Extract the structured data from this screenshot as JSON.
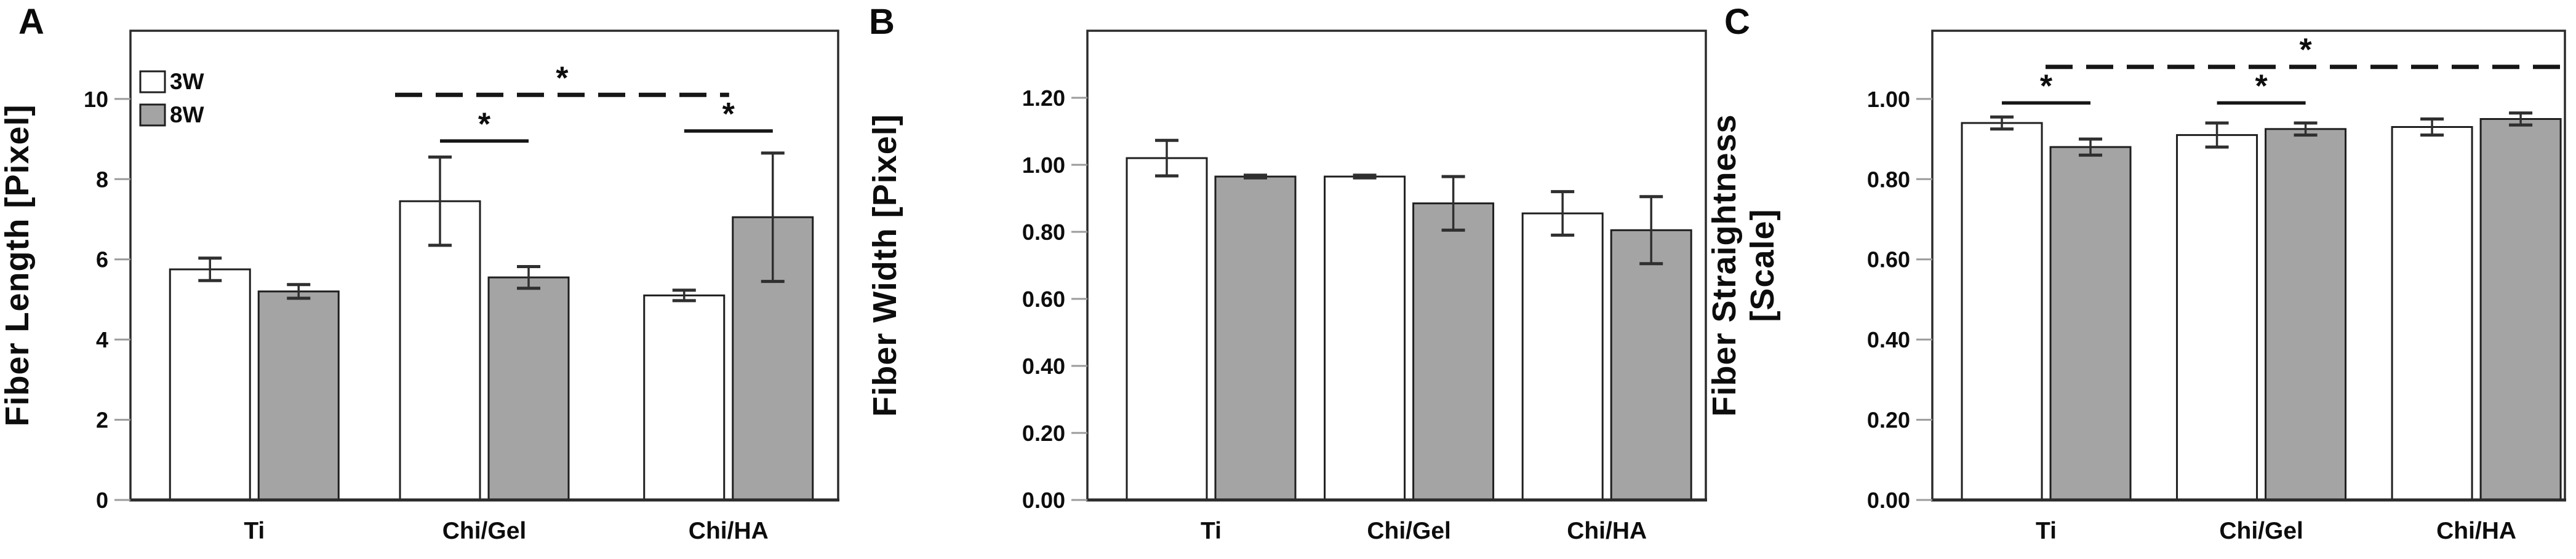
{
  "figure": {
    "background": "#ffffff",
    "panel_letters": [
      "A",
      "B",
      "C"
    ],
    "bar_outline_color": "#1f1f1f",
    "error_bar_color": "#2f2f2f",
    "axis_box_color": "#2b2b2b",
    "tick_mark_color": "#9b9b9b",
    "significance_symbol": "*"
  },
  "chart_data": [
    {
      "type": "bar",
      "panel_letter": "A",
      "ylabel_lines": [
        "Fiber Length [Pixel]"
      ],
      "ylabel_x": 46,
      "ylim": [
        0,
        11.7
      ],
      "yticks": [
        {
          "value": 0,
          "label": "0"
        },
        {
          "value": 2,
          "label": "2"
        },
        {
          "value": 4,
          "label": "4"
        },
        {
          "value": 6,
          "label": "6"
        },
        {
          "value": 8,
          "label": "8"
        },
        {
          "value": 10,
          "label": "10"
        }
      ],
      "categories": [
        "Ti",
        "Chi/Gel",
        "Chi/HA"
      ],
      "series": [
        {
          "name": "3W",
          "fill": "#ffffff",
          "values": [
            5.75,
            7.45,
            5.1
          ],
          "errors": [
            0.28,
            1.1,
            0.13
          ]
        },
        {
          "name": "8W",
          "fill": "#a4a4a4",
          "values": [
            5.2,
            5.55,
            7.05
          ],
          "errors": [
            0.17,
            0.27,
            1.6
          ]
        }
      ],
      "legend": {
        "show": true,
        "items": [
          {
            "label": "3W",
            "fill": "#ffffff"
          },
          {
            "label": "8W",
            "fill": "#a4a4a4"
          }
        ]
      },
      "significance": [
        {
          "style": "solid",
          "x1": {
            "group": 1,
            "series": 0
          },
          "x2": {
            "group": 1,
            "series": 1
          },
          "y": 8.95,
          "label": "*",
          "extend": false
        },
        {
          "style": "solid",
          "x1": {
            "group": 2,
            "series": 0
          },
          "x2": {
            "group": 2,
            "series": 1
          },
          "y": 9.2,
          "label": "*",
          "extend": false
        },
        {
          "style": "dashed",
          "x1": {
            "group": 1,
            "series": 0
          },
          "x2": {
            "group": 2,
            "series": 0
          },
          "y": 10.1,
          "label": "*",
          "extend": true
        }
      ]
    },
    {
      "type": "bar",
      "panel_letter": "B",
      "ylabel_lines": [
        "Fiber Width [Pixel]"
      ],
      "ylabel_x": 56,
      "ylim": [
        0,
        1.4
      ],
      "yticks": [
        {
          "value": 0.0,
          "label": "0.00"
        },
        {
          "value": 0.2,
          "label": "0.20"
        },
        {
          "value": 0.4,
          "label": "0.40"
        },
        {
          "value": 0.6,
          "label": "0.60"
        },
        {
          "value": 0.8,
          "label": "0.80"
        },
        {
          "value": 1.0,
          "label": "1.00"
        },
        {
          "value": 1.2,
          "label": "1.20"
        }
      ],
      "categories": [
        "Ti",
        "Chi/Gel",
        "Chi/HA"
      ],
      "series": [
        {
          "name": "3W",
          "fill": "#ffffff",
          "values": [
            1.02,
            0.965,
            0.855
          ],
          "errors": [
            0.053,
            0.004,
            0.065
          ]
        },
        {
          "name": "8W",
          "fill": "#a4a4a4",
          "values": [
            0.965,
            0.885,
            0.805
          ],
          "errors": [
            0.004,
            0.08,
            0.1
          ]
        }
      ],
      "legend": {
        "show": false,
        "items": []
      },
      "significance": []
    },
    {
      "type": "bar",
      "panel_letter": "C",
      "ylabel_lines": [
        "Fiber Straightness",
        "[Scale]"
      ],
      "ylabel_x": 40,
      "ylim": [
        0,
        1.17
      ],
      "yticks": [
        {
          "value": 0.0,
          "label": "0.00"
        },
        {
          "value": 0.2,
          "label": "0.20"
        },
        {
          "value": 0.4,
          "label": "0.40"
        },
        {
          "value": 0.6,
          "label": "0.60"
        },
        {
          "value": 0.8,
          "label": "0.80"
        },
        {
          "value": 1.0,
          "label": "1.00"
        }
      ],
      "categories": [
        "Ti",
        "Chi/Gel",
        "Chi/HA"
      ],
      "series": [
        {
          "name": "3W",
          "fill": "#ffffff",
          "values": [
            0.94,
            0.91,
            0.93
          ],
          "errors": [
            0.015,
            0.03,
            0.02
          ]
        },
        {
          "name": "8W",
          "fill": "#a4a4a4",
          "values": [
            0.88,
            0.925,
            0.95
          ],
          "errors": [
            0.02,
            0.015,
            0.015
          ]
        }
      ],
      "legend": {
        "show": false,
        "items": []
      },
      "significance": [
        {
          "style": "solid",
          "x1": {
            "group": 0,
            "series": 0
          },
          "x2": {
            "group": 0,
            "series": 1
          },
          "y": 0.99,
          "label": "*",
          "extend": false
        },
        {
          "style": "solid",
          "x1": {
            "group": 1,
            "series": 0
          },
          "x2": {
            "group": 1,
            "series": 1
          },
          "y": 0.99,
          "label": "*",
          "extend": false
        },
        {
          "style": "dashed",
          "x1": {
            "group": 0,
            "series": 1
          },
          "x2": {
            "group": 2,
            "series": 1
          },
          "y": 1.08,
          "label": "*",
          "extend": true
        }
      ]
    }
  ]
}
